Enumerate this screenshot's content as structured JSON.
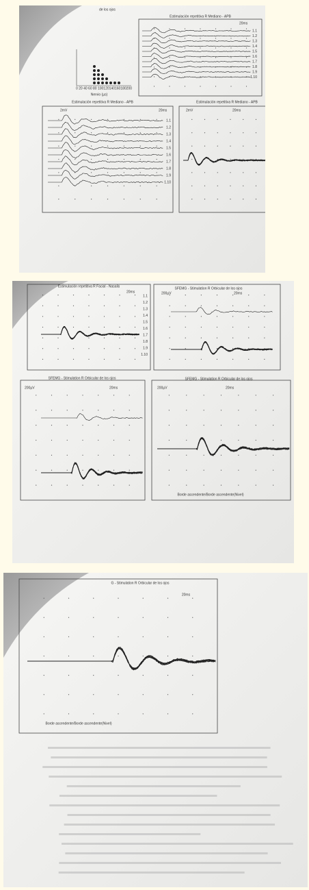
{
  "photo1": {
    "header": "de los ojos",
    "top_chart_title": "Estimulación repetitiva R Mediano - APB",
    "top_chart_scale": "20ms",
    "top_trace_labels": [
      "1.1",
      "1.2",
      "1.3",
      "1.4",
      "1.5",
      "1.6",
      "1.7",
      "1.8",
      "1.9",
      "1.10"
    ],
    "histogram_ticks": "0  20  40  60  80 100120140160180200",
    "histogram_axis_label": "Nervio (µs)",
    "left_chart_title": "Estimulación repetitiva R Mediano - APB",
    "left_chart_amp": "2mV",
    "left_chart_scale": "20ms",
    "left_trace_labels": [
      "1.1",
      "1.2",
      "1.3",
      "1.4",
      "1.5",
      "1.6",
      "1.7",
      "1.8",
      "1.9",
      "1.10"
    ],
    "right_chart_title": "Estimulación repetitiva R Mediano - APB",
    "right_chart_amp": "2mV",
    "right_chart_scale": "20ms"
  },
  "photo2": {
    "top_left_title": "Estimulación repetitiva R Facial - Nasalis",
    "top_left_scale": "20ms",
    "trace_labels": [
      "1.1",
      "1.2",
      "1.3",
      "1.4",
      "1.5",
      "1.6",
      "1.7",
      "1.8",
      "1.9",
      "1.10"
    ],
    "top_right_title": "SFEMG - Stimulation R Orbicular de los ojos",
    "top_right_amp": "200µV",
    "top_right_scale": "20ms",
    "bottom_left_title": "SFEMG - Stimulation R Orbicular de los ojos",
    "bottom_left_amp": "200µV",
    "bottom_left_scale": "20ms",
    "bottom_right_title": "SFEMG - Stimulation R Orbicular de los ojos",
    "bottom_right_amp": "200µV",
    "bottom_right_scale": "20ms",
    "footer": "Borde ascendente/Borde ascendente(Nivel)"
  },
  "photo3": {
    "title": "G - Stimulation R Orbicular de los ojos",
    "scale": "20ms",
    "footer": "Borde ascendente/Borde ascendente(Nivel)"
  }
}
